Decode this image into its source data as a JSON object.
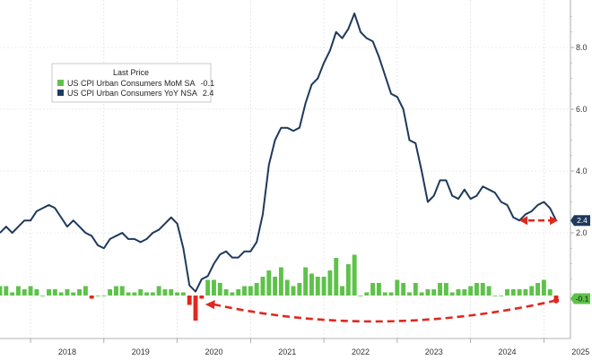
{
  "chart_data": {
    "type": "bar+line",
    "title": "",
    "xlabel": "",
    "ylabel": "",
    "ylim": [
      -0.6,
      9.5
    ],
    "y_ticks": [
      "2.0",
      "4.0",
      "6.0",
      "8.0"
    ],
    "y_tick_values": [
      2,
      4,
      6,
      8
    ],
    "x_year_labels": [
      "2018",
      "2019",
      "2020",
      "2021",
      "2022",
      "2023",
      "2024",
      "2025"
    ],
    "grid": true,
    "legend": {
      "title": "Last Price",
      "placement": "top-left",
      "entries": [
        {
          "label": "US CPI Urban Consumers MoM SA",
          "value": "-0.1",
          "color": "#5ec24a"
        },
        {
          "label": "US CPI Urban Consumers YoY NSA",
          "value": "2.4",
          "color": "#1f3a5c"
        }
      ]
    },
    "end_tags": [
      {
        "text": "2.4",
        "series": "US CPI Urban Consumers YoY NSA",
        "color": "#1f3a5c"
      },
      {
        "text": "-0.1",
        "series": "US CPI Urban Consumers MoM SA",
        "color": "#5ec24a"
      }
    ],
    "annotations": [
      {
        "type": "dashed-arrow",
        "color": "#e0281e",
        "from": "2025-03",
        "to": "2024-09",
        "series": "US CPI Urban Consumers YoY NSA"
      },
      {
        "type": "dashed-arrow",
        "color": "#e0281e",
        "from": "2025-03",
        "to": "2020-05",
        "series": "US CPI Urban Consumers MoM SA"
      }
    ],
    "series": [
      {
        "name": "US CPI Urban Consumers YoY NSA",
        "kind": "line",
        "color": "#1f3a5c",
        "x": [
          "2017-08",
          "2017-09",
          "2017-10",
          "2017-11",
          "2017-12",
          "2018-01",
          "2018-02",
          "2018-03",
          "2018-04",
          "2018-05",
          "2018-06",
          "2018-07",
          "2018-08",
          "2018-09",
          "2018-10",
          "2018-11",
          "2018-12",
          "2019-01",
          "2019-02",
          "2019-03",
          "2019-04",
          "2019-05",
          "2019-06",
          "2019-07",
          "2019-08",
          "2019-09",
          "2019-10",
          "2019-11",
          "2019-12",
          "2020-01",
          "2020-02",
          "2020-03",
          "2020-04",
          "2020-05",
          "2020-06",
          "2020-07",
          "2020-08",
          "2020-09",
          "2020-10",
          "2020-11",
          "2020-12",
          "2021-01",
          "2021-02",
          "2021-03",
          "2021-04",
          "2021-05",
          "2021-06",
          "2021-07",
          "2021-08",
          "2021-09",
          "2021-10",
          "2021-11",
          "2021-12",
          "2022-01",
          "2022-02",
          "2022-03",
          "2022-04",
          "2022-05",
          "2022-06",
          "2022-07",
          "2022-08",
          "2022-09",
          "2022-10",
          "2022-11",
          "2022-12",
          "2023-01",
          "2023-02",
          "2023-03",
          "2023-04",
          "2023-05",
          "2023-06",
          "2023-07",
          "2023-08",
          "2023-09",
          "2023-10",
          "2023-11",
          "2023-12",
          "2024-01",
          "2024-02",
          "2024-03",
          "2024-04",
          "2024-05",
          "2024-06",
          "2024-07",
          "2024-08",
          "2024-09",
          "2024-10",
          "2024-11",
          "2024-12",
          "2025-01",
          "2025-02",
          "2025-03"
        ],
        "values": [
          2.0,
          2.2,
          2.0,
          2.2,
          2.4,
          2.4,
          2.7,
          2.8,
          2.9,
          2.8,
          2.5,
          2.2,
          2.4,
          2.2,
          2.0,
          1.9,
          1.6,
          1.5,
          1.8,
          1.9,
          2.0,
          1.8,
          1.8,
          1.7,
          1.8,
          2.0,
          2.1,
          2.3,
          2.5,
          2.3,
          1.5,
          0.3,
          0.1,
          0.5,
          0.6,
          1.0,
          1.3,
          1.4,
          1.2,
          1.2,
          1.4,
          1.4,
          1.7,
          2.6,
          4.2,
          5.0,
          5.4,
          5.4,
          5.3,
          5.4,
          6.2,
          6.8,
          7.0,
          7.5,
          7.9,
          8.5,
          8.3,
          8.6,
          9.1,
          8.5,
          8.3,
          8.2,
          7.7,
          7.1,
          6.5,
          6.4,
          6.0,
          5.0,
          4.9,
          4.0,
          3.0,
          3.2,
          3.7,
          3.7,
          3.2,
          3.1,
          3.4,
          3.1,
          3.2,
          3.5,
          3.4,
          3.3,
          3.0,
          2.9,
          2.5,
          2.4,
          2.6,
          2.7,
          2.9,
          3.0,
          2.8,
          2.4
        ]
      },
      {
        "name": "US CPI Urban Consumers MoM SA",
        "kind": "bar",
        "color": "#5ec24a",
        "negative_color": "#e0281e",
        "x": [
          "2017-08",
          "2017-09",
          "2017-10",
          "2017-11",
          "2017-12",
          "2018-01",
          "2018-02",
          "2018-03",
          "2018-04",
          "2018-05",
          "2018-06",
          "2018-07",
          "2018-08",
          "2018-09",
          "2018-10",
          "2018-11",
          "2018-12",
          "2019-01",
          "2019-02",
          "2019-03",
          "2019-04",
          "2019-05",
          "2019-06",
          "2019-07",
          "2019-08",
          "2019-09",
          "2019-10",
          "2019-11",
          "2019-12",
          "2020-01",
          "2020-02",
          "2020-03",
          "2020-04",
          "2020-05",
          "2020-06",
          "2020-07",
          "2020-08",
          "2020-09",
          "2020-10",
          "2020-11",
          "2020-12",
          "2021-01",
          "2021-02",
          "2021-03",
          "2021-04",
          "2021-05",
          "2021-06",
          "2021-07",
          "2021-08",
          "2021-09",
          "2021-10",
          "2021-11",
          "2021-12",
          "2022-01",
          "2022-02",
          "2022-03",
          "2022-04",
          "2022-05",
          "2022-06",
          "2022-07",
          "2022-08",
          "2022-09",
          "2022-10",
          "2022-11",
          "2022-12",
          "2023-01",
          "2023-02",
          "2023-03",
          "2023-04",
          "2023-05",
          "2023-06",
          "2023-07",
          "2023-08",
          "2023-09",
          "2023-10",
          "2023-11",
          "2023-12",
          "2024-01",
          "2024-02",
          "2024-03",
          "2024-04",
          "2024-05",
          "2024-06",
          "2024-07",
          "2024-08",
          "2024-09",
          "2024-10",
          "2024-11",
          "2024-12",
          "2025-01",
          "2025-02",
          "2025-03"
        ],
        "values": [
          0.3,
          0.3,
          0.1,
          0.3,
          0.2,
          0.3,
          0.2,
          0.0,
          0.2,
          0.2,
          0.1,
          0.2,
          0.1,
          0.2,
          0.3,
          -0.1,
          0.0,
          0.0,
          0.2,
          0.3,
          0.3,
          0.1,
          0.1,
          0.2,
          0.1,
          0.1,
          0.3,
          0.2,
          0.2,
          0.1,
          0.1,
          -0.3,
          -0.8,
          -0.1,
          0.5,
          0.5,
          0.4,
          0.2,
          0.1,
          0.2,
          0.3,
          0.3,
          0.4,
          0.6,
          0.8,
          0.6,
          0.9,
          0.5,
          0.3,
          0.4,
          0.9,
          0.7,
          0.6,
          0.6,
          0.8,
          1.2,
          0.3,
          1.0,
          1.3,
          0.0,
          0.1,
          0.4,
          0.4,
          0.1,
          0.1,
          0.5,
          0.4,
          0.1,
          0.4,
          0.1,
          0.2,
          0.2,
          0.4,
          0.4,
          0.1,
          0.2,
          0.2,
          0.3,
          0.4,
          0.4,
          0.3,
          0.0,
          0.0,
          0.2,
          0.2,
          0.2,
          0.2,
          0.3,
          0.4,
          0.5,
          0.2,
          -0.1
        ]
      }
    ]
  }
}
